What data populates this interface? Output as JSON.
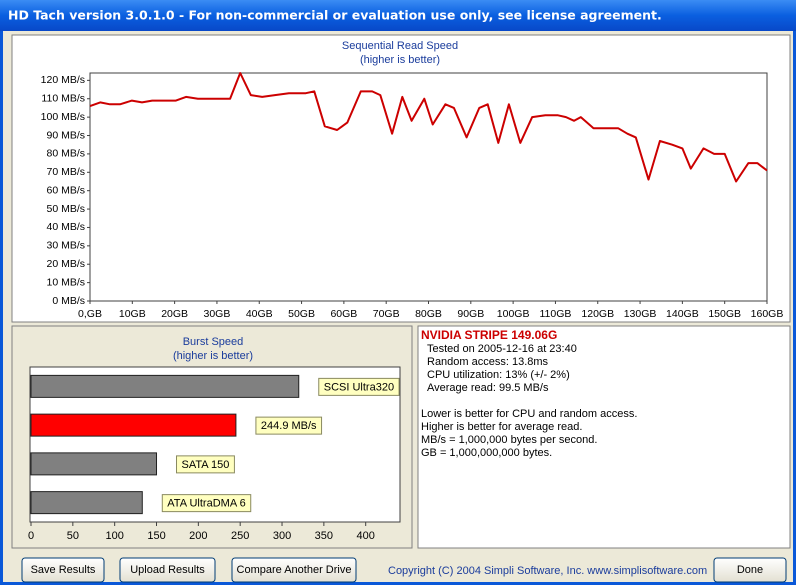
{
  "window": {
    "title": "HD Tach version 3.0.1.0  - For non-commercial or evaluation use only, see license agreement."
  },
  "chart_data": [
    {
      "type": "line",
      "title": "Sequential Read Speed",
      "subtitle": "(higher is better)",
      "color": "#cc0000",
      "grid": false,
      "x": [
        0,
        2.4,
        4.7,
        7.1,
        9.9,
        12.3,
        14.7,
        17.7,
        20.3,
        22.7,
        25.5,
        27.9,
        30.7,
        33.1,
        35.5,
        38,
        40.7,
        43.7,
        47,
        51,
        53,
        55.5,
        58.4,
        60.8,
        64,
        66.7,
        68.6,
        71.4,
        73.8,
        76,
        79,
        81,
        84,
        86,
        89,
        92,
        94,
        96.5,
        99,
        101.7,
        104.5,
        107.6,
        110.6,
        112.5,
        114.4,
        116,
        119,
        122,
        124.8,
        127,
        129,
        132,
        134.7,
        137.6,
        140,
        142,
        145,
        147.5,
        150,
        152.7,
        155.6,
        157.7,
        160
      ],
      "values": [
        106,
        108,
        107,
        107,
        109,
        108,
        109,
        109,
        109,
        111,
        110,
        110,
        110,
        110,
        124,
        112,
        111,
        112,
        113,
        113,
        114,
        95,
        93,
        97,
        114,
        114,
        112,
        91,
        111,
        98,
        110,
        96,
        107,
        105,
        89,
        105,
        107,
        86,
        107,
        86,
        100,
        101,
        101,
        100,
        98,
        100,
        94,
        94,
        94,
        91,
        89,
        66,
        87,
        85,
        83,
        72,
        83,
        80,
        80,
        65,
        75,
        75,
        71
      ],
      "xlim": [
        0,
        160
      ],
      "xticks": [
        {
          "value": 0,
          "label": "0,GB"
        },
        {
          "value": 10,
          "label": "10GB"
        },
        {
          "value": 20,
          "label": "20GB"
        },
        {
          "value": 30,
          "label": "30GB"
        },
        {
          "value": 40,
          "label": "40GB"
        },
        {
          "value": 50,
          "label": "50GB"
        },
        {
          "value": 60,
          "label": "60GB"
        },
        {
          "value": 70,
          "label": "70GB"
        },
        {
          "value": 80,
          "label": "80GB"
        },
        {
          "value": 90,
          "label": "90GB"
        },
        {
          "value": 100,
          "label": "100GB"
        },
        {
          "value": 110,
          "label": "110GB"
        },
        {
          "value": 120,
          "label": "120GB"
        },
        {
          "value": 130,
          "label": "130GB"
        },
        {
          "value": 140,
          "label": "140GB"
        },
        {
          "value": 150,
          "label": "150GB"
        },
        {
          "value": 160,
          "label": "160GB"
        }
      ],
      "ylim": [
        0,
        124
      ],
      "yticks": [
        {
          "value": 0,
          "label": "0 MB/s"
        },
        {
          "value": 10,
          "label": "10 MB/s"
        },
        {
          "value": 20,
          "label": "20 MB/s"
        },
        {
          "value": 30,
          "label": "30 MB/s"
        },
        {
          "value": 40,
          "label": "40 MB/s"
        },
        {
          "value": 50,
          "label": "50 MB/s"
        },
        {
          "value": 60,
          "label": "60 MB/s"
        },
        {
          "value": 70,
          "label": "70 MB/s"
        },
        {
          "value": 80,
          "label": "80 MB/s"
        },
        {
          "value": 90,
          "label": "90 MB/s"
        },
        {
          "value": 100,
          "label": "100 MB/s"
        },
        {
          "value": 110,
          "label": "110 MB/s"
        },
        {
          "value": 120,
          "label": "120 MB/s"
        }
      ]
    },
    {
      "type": "hbar",
      "title": "Burst Speed",
      "subtitle": "(higher is better)",
      "categories": [
        "SCSI Ultra320",
        null,
        "SATA 150",
        "ATA UltraDMA 6"
      ],
      "values": [
        320,
        244.9,
        150,
        133
      ],
      "value_labels": [
        null,
        "244.9 MB/s",
        null,
        null
      ],
      "colors": [
        "#808080",
        "#ff0000",
        "#808080",
        "#808080"
      ],
      "xlim": [
        0,
        441
      ],
      "xticks": [
        0,
        50,
        100,
        150,
        200,
        250,
        300,
        350,
        400
      ]
    }
  ],
  "info": {
    "drive": "NVIDIA STRIPE 149.06G",
    "stats": [
      "Tested on 2005-12-16 at 23:40",
      "Random access: 13.8ms",
      "CPU utilization: 13% (+/- 2%)",
      "Average read: 99.5 MB/s"
    ],
    "notes": [
      "Lower is better for CPU and random access.",
      "Higher is better for average read.",
      "MB/s = 1,000,000 bytes per second.",
      "GB = 1,000,000,000 bytes."
    ]
  },
  "buttons": [
    "Save Results",
    "Upload Results",
    "Compare Another Drive"
  ],
  "copyright": "Copyright (C) 2004 Simpli Software, Inc. www.simplisoftware.com",
  "done": "Done"
}
